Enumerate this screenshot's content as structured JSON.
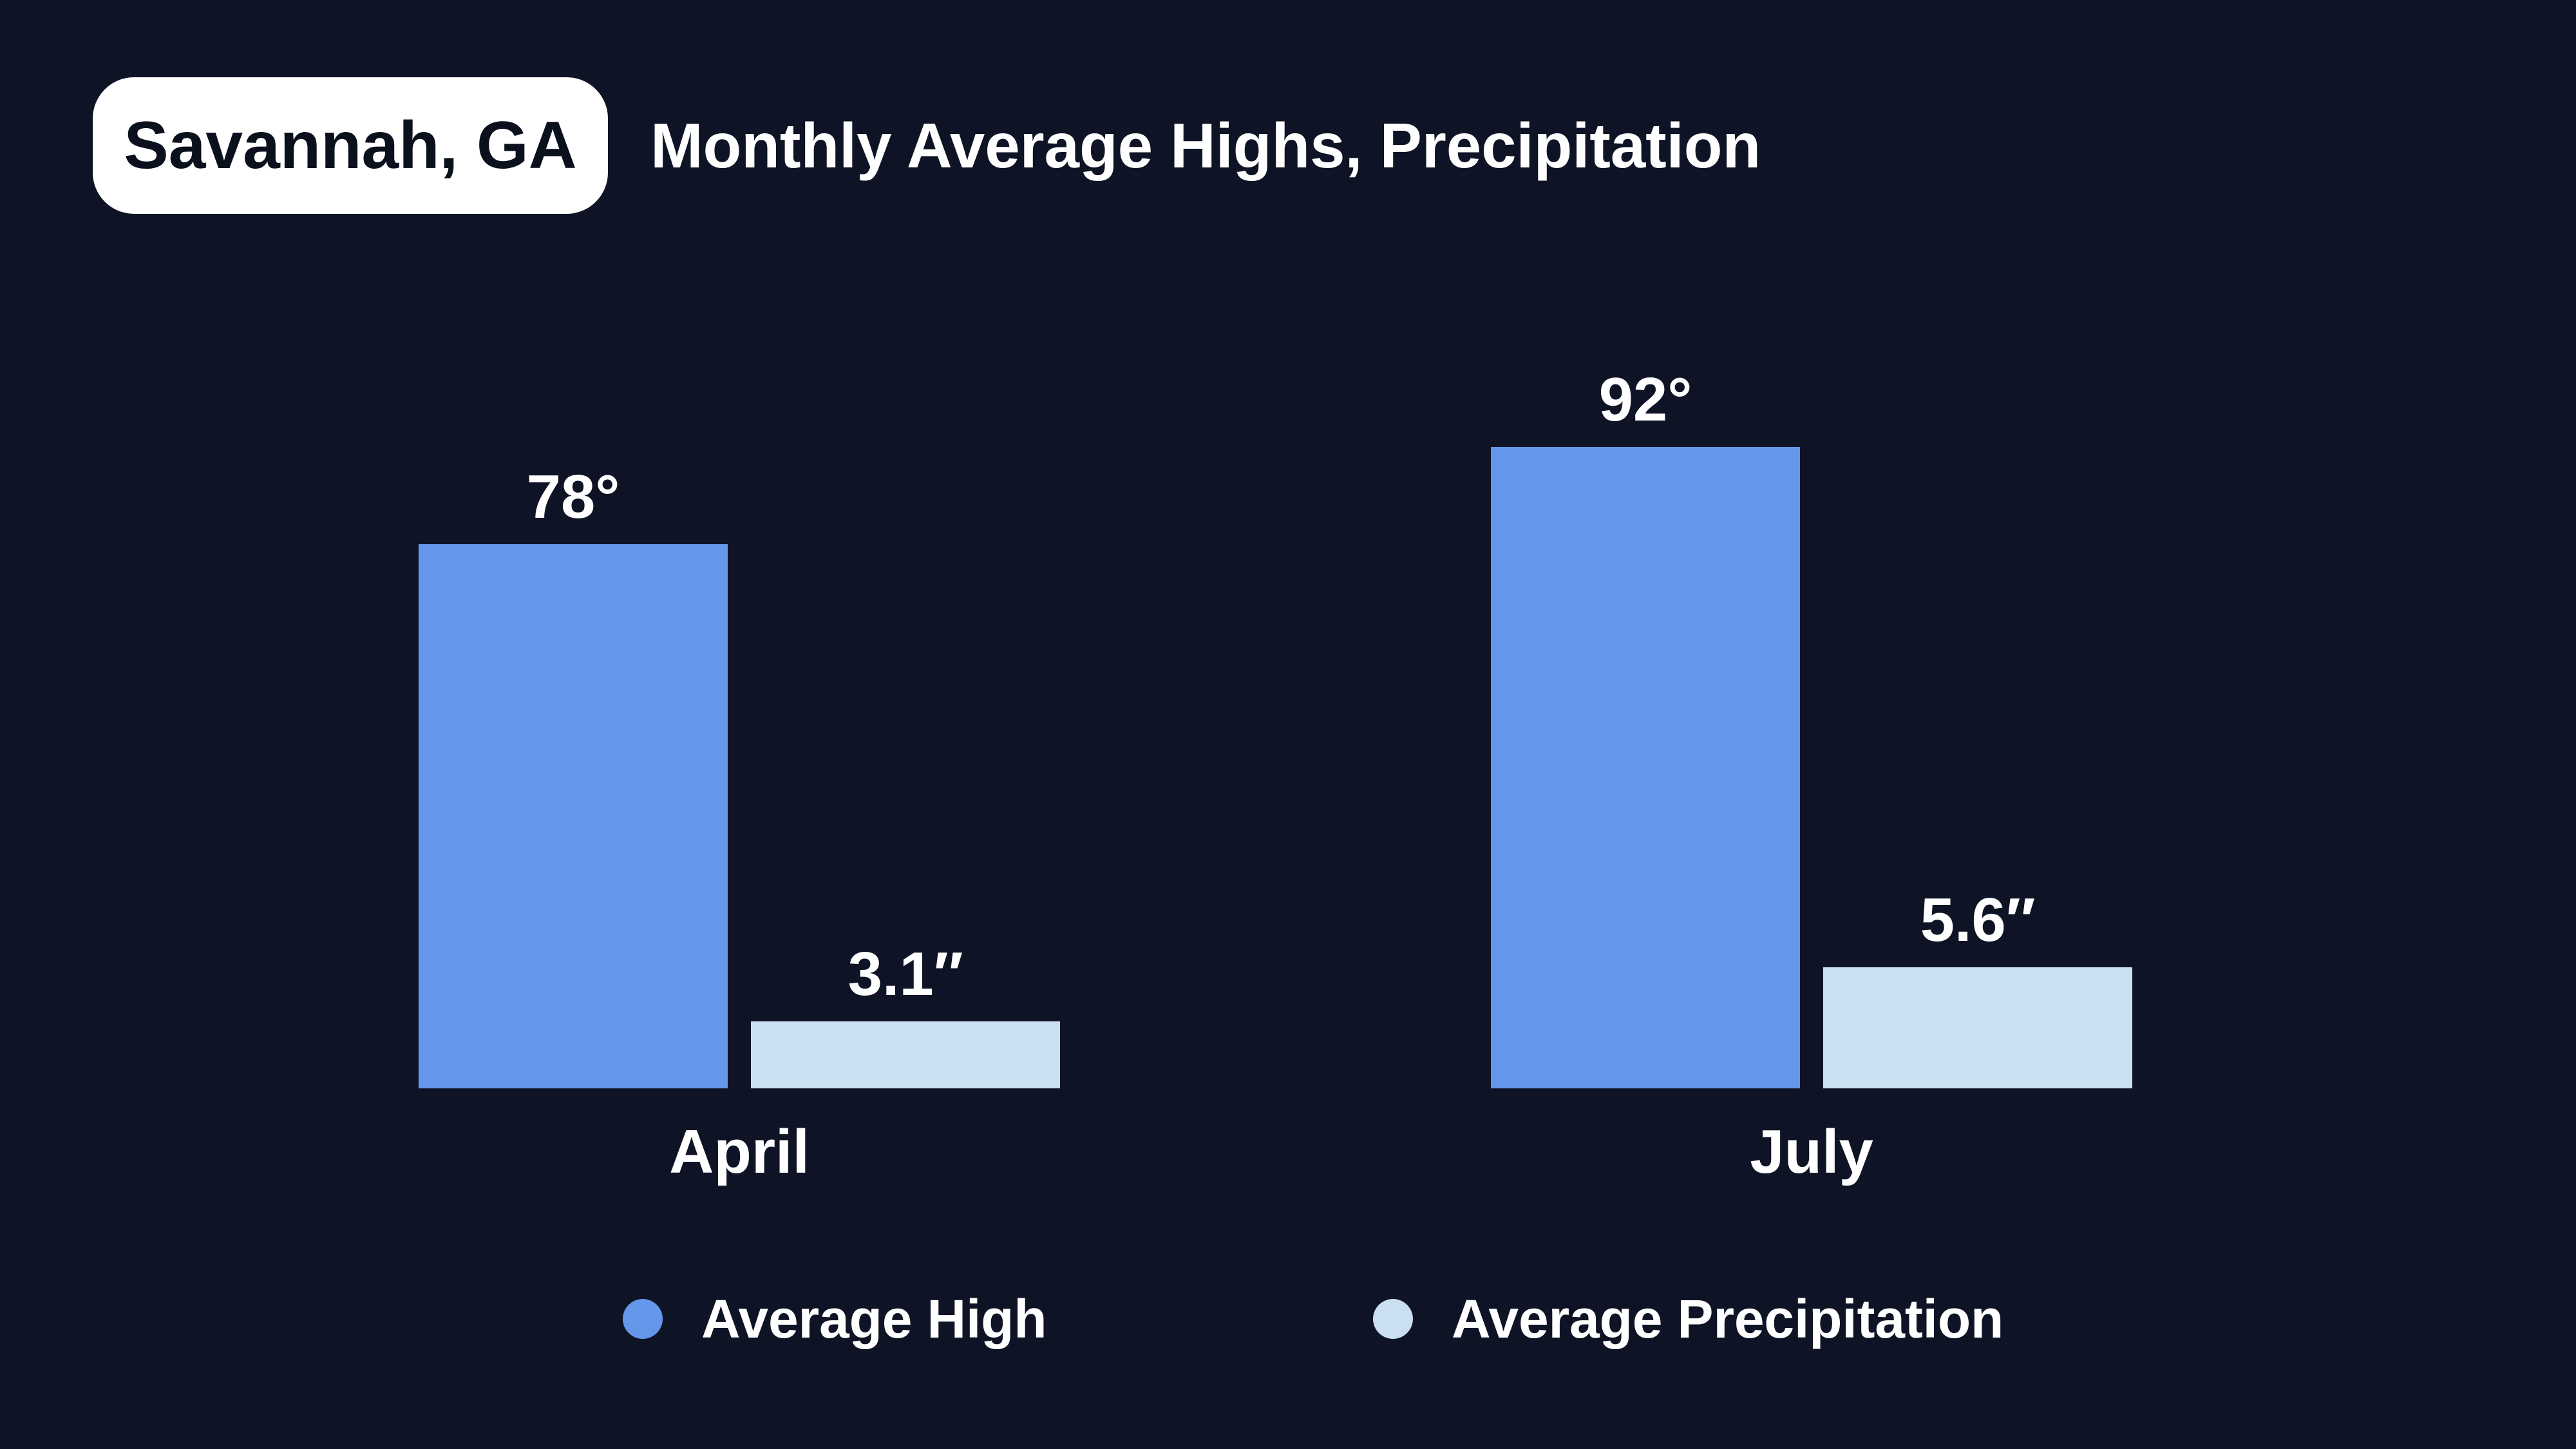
{
  "header": {
    "location_badge": "Savannah, GA",
    "title": "Monthly Average Highs, Precipitation"
  },
  "colors": {
    "background": "#0E1425",
    "high": "#6497EA",
    "precipitation": "#CBDFF2",
    "text": "#FFFFFF",
    "badge_background": "#FFFFFF",
    "badge_text": "#0B101D"
  },
  "chart_data": {
    "type": "bar",
    "categories": [
      "April",
      "July"
    ],
    "series": [
      {
        "name": "Average High",
        "unit": "°F",
        "values": [
          78,
          92
        ],
        "labels": [
          "78°",
          "92°"
        ],
        "color": "#6497EA"
      },
      {
        "name": "Average Precipitation",
        "unit": "inches",
        "values": [
          3.1,
          5.6
        ],
        "labels": [
          "3.1″",
          "5.6″"
        ],
        "color": "#CBDFF2"
      }
    ],
    "value_labels_position": "above-bars",
    "axes_visible": false,
    "grid": false,
    "legend_position": "bottom"
  },
  "legend": {
    "items": [
      {
        "label": "Average High",
        "color": "#6497EA"
      },
      {
        "label": "Average Precipitation",
        "color": "#CBDFF2"
      }
    ]
  }
}
